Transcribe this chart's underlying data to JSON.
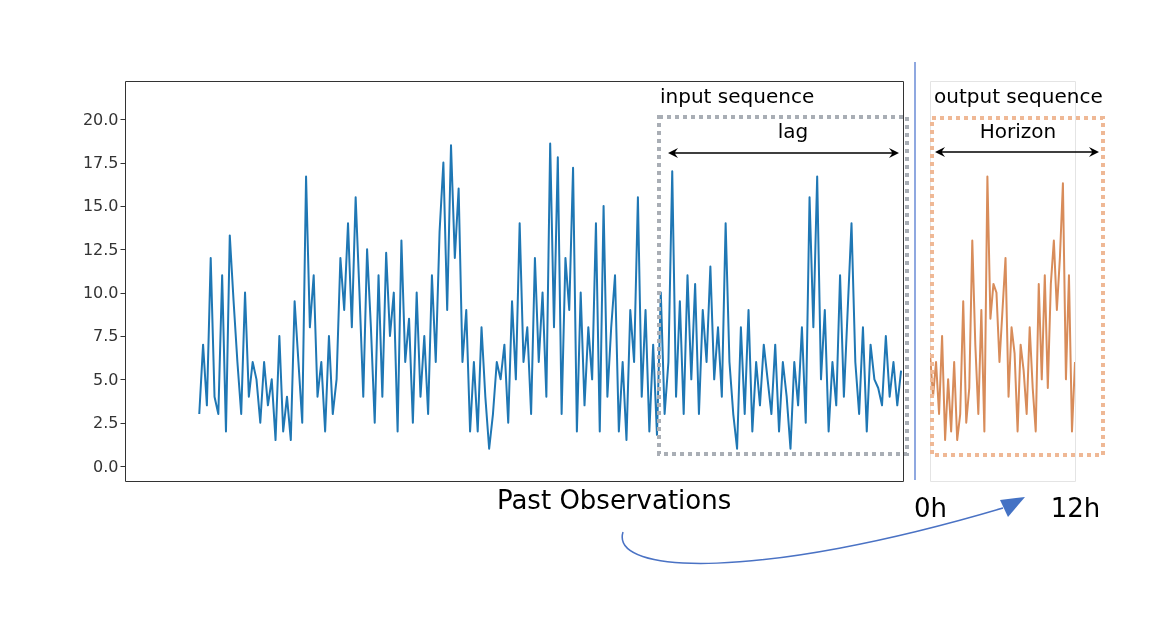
{
  "chart_data": [
    {
      "type": "line",
      "xlabel": "Past Observations",
      "categories": [
        null,
        null,
        null,
        null,
        null,
        null,
        null,
        null,
        null,
        null,
        null,
        null,
        null,
        null,
        null,
        null,
        null,
        null,
        null,
        null,
        null,
        null,
        null,
        null,
        null,
        null,
        null,
        null,
        null,
        null,
        null,
        null,
        null,
        null,
        null,
        null,
        null,
        null,
        null,
        null,
        null,
        null,
        null,
        null,
        null,
        null,
        null,
        null,
        null,
        null,
        null,
        null,
        null,
        null,
        null,
        null,
        null,
        null,
        null,
        null,
        null,
        null,
        null,
        null,
        null,
        null,
        null,
        null,
        null,
        null,
        null,
        null,
        null,
        null,
        null,
        null,
        null,
        null,
        null,
        null,
        null,
        null,
        null,
        null,
        null,
        null,
        null,
        null,
        null,
        null,
        null,
        null,
        null,
        null,
        null,
        null,
        null,
        null,
        null,
        null,
        null,
        null,
        null,
        null,
        null,
        null,
        null,
        null,
        null,
        null,
        null,
        null,
        null,
        null,
        null,
        null,
        null,
        null,
        null,
        null,
        null,
        null,
        null,
        null,
        null,
        null,
        null,
        null,
        null,
        null,
        null,
        null,
        null,
        null,
        null,
        null,
        null,
        null,
        null,
        null,
        null,
        null,
        null,
        null,
        null,
        null,
        null,
        null,
        null,
        null,
        null,
        null,
        null,
        null,
        null,
        null,
        null,
        null,
        null,
        null,
        null,
        null,
        null,
        null,
        null,
        null,
        null,
        null,
        null,
        null,
        null,
        null,
        null,
        null,
        null,
        null,
        null,
        null,
        null,
        null,
        null,
        null,
        null,
        null,
        null
      ],
      "series": [
        {
          "color": "#1f77b4",
          "values": [
            3,
            7,
            3.5,
            12,
            4,
            3,
            11,
            2,
            13.3,
            9.5,
            6,
            3,
            10,
            4,
            6,
            5,
            2.5,
            6,
            3.5,
            5,
            1.5,
            7.5,
            2,
            4,
            1.5,
            9.5,
            6,
            2.5,
            16.7,
            8,
            11,
            4,
            6,
            2,
            7.5,
            3,
            5,
            12,
            9,
            14,
            8,
            15.5,
            10,
            4,
            12.5,
            8,
            2.5,
            11,
            4,
            12.3,
            7.5,
            10,
            2,
            13,
            6,
            8.5,
            2.5,
            10,
            4,
            7.5,
            3,
            11,
            6,
            13.5,
            17.5,
            9,
            18.5,
            12,
            16,
            6,
            9,
            2,
            6,
            2,
            8,
            4,
            1,
            3,
            6,
            5,
            7,
            2.5,
            9.5,
            5,
            14,
            6,
            8,
            3,
            12,
            6,
            10,
            4,
            18.6,
            8,
            17.8,
            3,
            12,
            9,
            17.2,
            2,
            10,
            3.5,
            8,
            5,
            14,
            2,
            15,
            4,
            8,
            11,
            2,
            6,
            1.5,
            9,
            6,
            15.5,
            4,
            9,
            2,
            7,
            1.8,
            10,
            3,
            6,
            17,
            4,
            9.5,
            3,
            11,
            5,
            10.5,
            3,
            9,
            6,
            11.5,
            5,
            8,
            4,
            14,
            6,
            3,
            1,
            8,
            3,
            9,
            2,
            6,
            3.5,
            7,
            5,
            3,
            7,
            2,
            6,
            4,
            1,
            6,
            3.5,
            8,
            2.5,
            15.5,
            8,
            16.7,
            5,
            9,
            2,
            6,
            3.5,
            11,
            4,
            9,
            14,
            6,
            3,
            8,
            2,
            7,
            5,
            4.5,
            3.5,
            7.5,
            4,
            6,
            3.5,
            5.5
          ]
        }
      ],
      "ylim": [
        -0.86,
        22.2
      ],
      "yticks": [
        {
          "value": 0,
          "label": "0.0"
        },
        {
          "value": 2.5,
          "label": "2.5"
        },
        {
          "value": 5,
          "label": "5.0"
        },
        {
          "value": 7.5,
          "label": "7.5"
        },
        {
          "value": 10,
          "label": "10.0"
        },
        {
          "value": 12.5,
          "label": "12.5"
        },
        {
          "value": 15,
          "label": "15.0"
        },
        {
          "value": 17.5,
          "label": "17.5"
        },
        {
          "value": 20,
          "label": "20.0"
        }
      ],
      "tick_labels": "y",
      "annotations": [
        "input sequence",
        "lag"
      ]
    },
    {
      "type": "line",
      "x": [
        0,
        0.25,
        0.5,
        0.75,
        1,
        1.25,
        1.5,
        1.75,
        2,
        2.25,
        2.5,
        2.75,
        3,
        3.25,
        3.5,
        3.75,
        4,
        4.25,
        4.5,
        4.75,
        5,
        5.25,
        5.5,
        5.75,
        6,
        6.25,
        6.5,
        6.75,
        7,
        7.25,
        7.5,
        7.75,
        8,
        8.25,
        8.5,
        8.75,
        9,
        9.25,
        9.5,
        9.75,
        10,
        10.25,
        10.5,
        10.75,
        11,
        11.25,
        11.5,
        11.75,
        12
      ],
      "series": [
        {
          "color": "#d88c5a",
          "values": [
            6.5,
            4,
            6,
            3,
            7.5,
            1.5,
            5,
            2,
            6,
            1.5,
            3,
            9.5,
            2.5,
            4.5,
            13,
            7,
            3,
            9,
            2,
            16.7,
            8.5,
            10.5,
            10,
            6,
            9,
            12,
            4,
            8,
            6.5,
            2,
            7,
            5.5,
            3,
            8,
            4.5,
            2,
            10.5,
            5,
            11,
            4.5,
            10.5,
            13,
            9,
            12,
            16.3,
            5,
            11,
            2,
            6
          ]
        }
      ],
      "xlim": [
        0,
        12
      ],
      "xticks": [
        {
          "value": 0,
          "label": "0h"
        },
        {
          "value": 12,
          "label": "12h"
        }
      ],
      "ylim": [
        -0.86,
        22.2
      ],
      "tick_labels": "x",
      "annotations": [
        "output sequence",
        "Horizon"
      ]
    }
  ]
}
